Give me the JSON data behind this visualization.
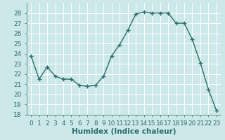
{
  "x": [
    0,
    1,
    2,
    3,
    4,
    5,
    6,
    7,
    8,
    9,
    10,
    11,
    12,
    13,
    14,
    15,
    16,
    17,
    18,
    19,
    20,
    21,
    22,
    23
  ],
  "y": [
    23.8,
    21.5,
    22.7,
    21.8,
    21.5,
    21.5,
    20.9,
    20.8,
    20.9,
    21.8,
    23.8,
    24.9,
    26.3,
    27.9,
    28.1,
    28.0,
    28.0,
    28.0,
    27.0,
    27.0,
    25.4,
    23.1,
    20.5,
    18.4
  ],
  "line_color": "#2d6e6e",
  "marker": "+",
  "marker_size": 4,
  "line_width": 1.0,
  "xlabel": "Humidex (Indice chaleur)",
  "xlim": [
    -0.5,
    23.5
  ],
  "ylim": [
    18,
    29
  ],
  "yticks": [
    18,
    19,
    20,
    21,
    22,
    23,
    24,
    25,
    26,
    27,
    28
  ],
  "xticks": [
    0,
    1,
    2,
    3,
    4,
    5,
    6,
    7,
    8,
    9,
    10,
    11,
    12,
    13,
    14,
    15,
    16,
    17,
    18,
    19,
    20,
    21,
    22,
    23
  ],
  "background_color": "#cce8e8",
  "grid_color": "#ffffff",
  "tick_label_fontsize": 6.5,
  "xlabel_fontsize": 7.5,
  "xlabel_fontweight": "bold",
  "tick_color": "#2d6e6e",
  "spine_color": "#2d6e6e"
}
